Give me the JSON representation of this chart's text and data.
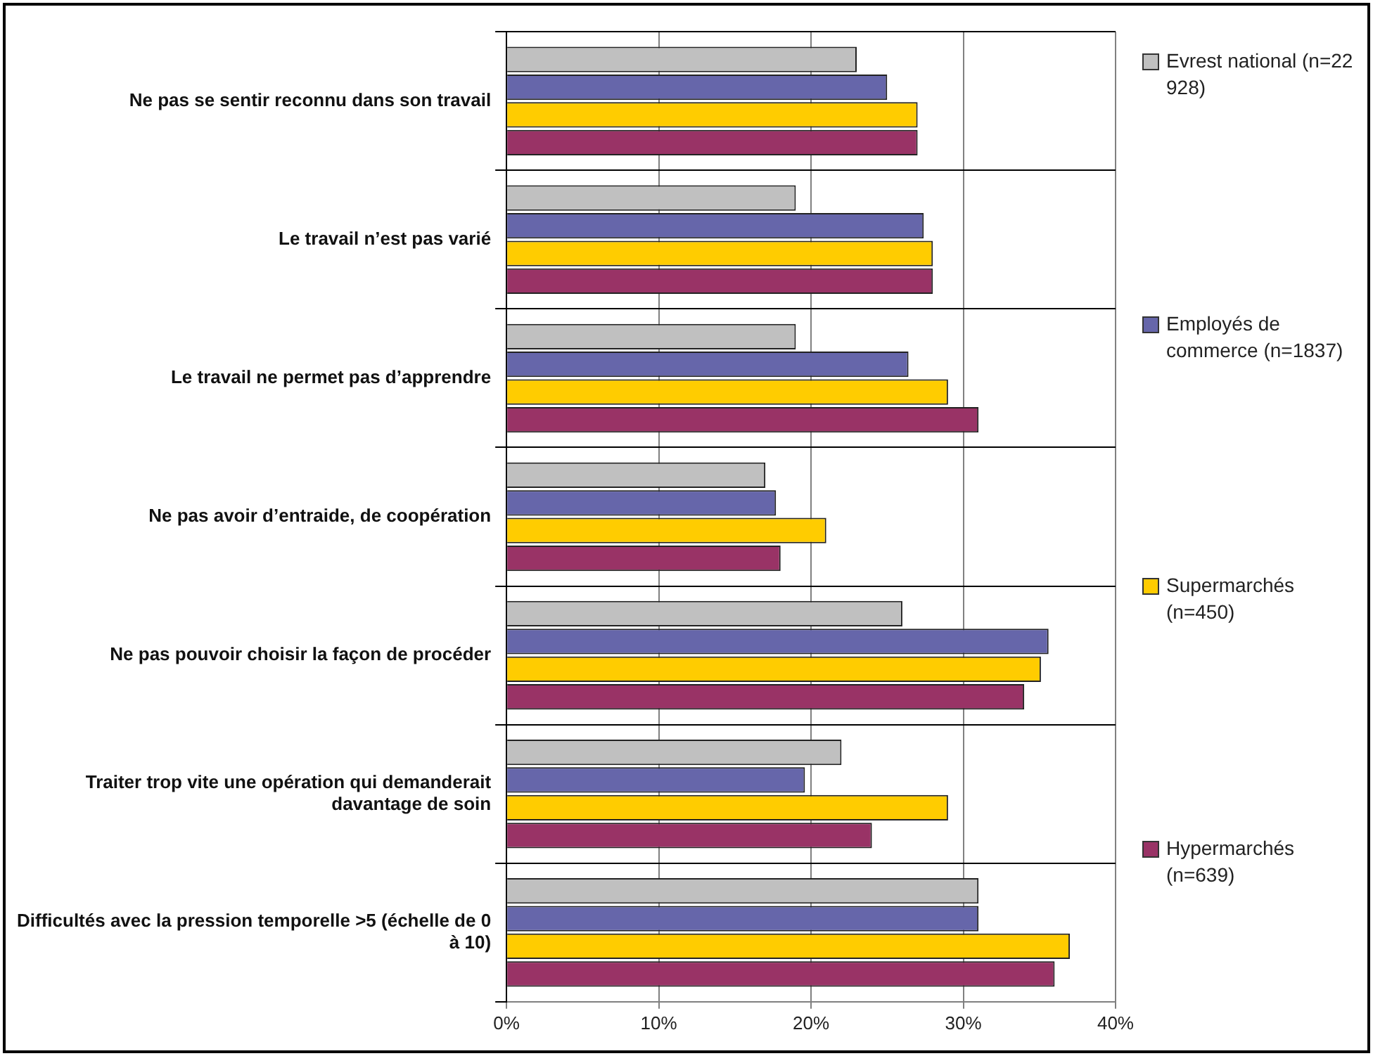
{
  "chart_data": {
    "type": "bar",
    "orientation": "horizontal",
    "categories": [
      "Ne pas se sentir reconnu dans son travail",
      "Le travail n’est pas varié",
      "Le travail ne permet pas d’apprendre",
      "Ne pas avoir d’entraide, de coopération",
      "Ne pas pouvoir choisir la façon de procéder",
      "Traiter trop vite une opération qui demanderait davantage de soin",
      "Difficultés avec la pression temporelle >5 (échelle de 0 à 10)"
    ],
    "series": [
      {
        "name": "Evrest national (n=22 928)",
        "color": "#c0c0c0",
        "values": [
          23,
          19,
          19,
          17,
          26,
          22,
          31
        ]
      },
      {
        "name": "Employés de commerce (n=1837)",
        "color": "#6666aa",
        "values": [
          25,
          27.4,
          26.4,
          17.7,
          35.6,
          19.6,
          31
        ]
      },
      {
        "name": "Supermarchés (n=450)",
        "color": "#ffcc00",
        "values": [
          27,
          28,
          29,
          21,
          35.1,
          29,
          37
        ]
      },
      {
        "name": "Hypermarchés (n=639)",
        "color": "#993366",
        "values": [
          27,
          28,
          31,
          18,
          34,
          24,
          36
        ]
      }
    ],
    "xlim": [
      0,
      40
    ],
    "xticks": [
      {
        "value": 0,
        "label": "0%"
      },
      {
        "value": 10,
        "label": "10%"
      },
      {
        "value": 20,
        "label": "20%"
      },
      {
        "value": 30,
        "label": "30%"
      },
      {
        "value": 40,
        "label": "40%"
      }
    ],
    "grid": true,
    "legend": "right"
  }
}
